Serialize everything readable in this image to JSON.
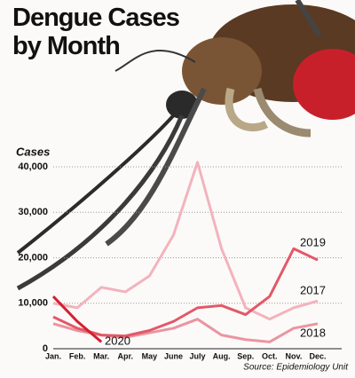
{
  "chart_data": {
    "type": "line",
    "title": "Dengue Cases by Month",
    "y_label": "Cases",
    "source": "Source: Epidemiology Unit",
    "categories": [
      "Jan.",
      "Feb.",
      "Mar.",
      "Apr.",
      "May",
      "June",
      "July",
      "Aug.",
      "Sep.",
      "Oct.",
      "Nov.",
      "Dec."
    ],
    "series": [
      {
        "name": "2017",
        "color": "#f3b3bc",
        "values": [
          10000,
          9000,
          13500,
          12500,
          16000,
          25000,
          41000,
          22000,
          9000,
          6500,
          9000,
          10500
        ]
      },
      {
        "name": "2018",
        "color": "#eb94a1",
        "values": [
          5500,
          4000,
          3000,
          2500,
          3500,
          4500,
          6500,
          3000,
          2000,
          1500,
          4500,
          5500
        ]
      },
      {
        "name": "2019",
        "color": "#e35868",
        "values": [
          7000,
          4500,
          3000,
          2800,
          4000,
          6000,
          9000,
          9500,
          7500,
          11500,
          22000,
          19500
        ]
      },
      {
        "name": "2020",
        "color": "#d41f30",
        "values": [
          11500,
          6000,
          1500,
          null,
          null,
          null,
          null,
          null,
          null,
          null,
          null,
          null
        ]
      }
    ],
    "ylim": [
      0,
      40000
    ],
    "yticks": [
      0,
      {
        "value": 10000,
        "label": "10,000"
      },
      {
        "value": 20000,
        "label": "20,000"
      },
      {
        "value": 30000,
        "label": "30,000"
      },
      {
        "value": 40000,
        "label": "40,000"
      }
    ],
    "grid": true
  }
}
